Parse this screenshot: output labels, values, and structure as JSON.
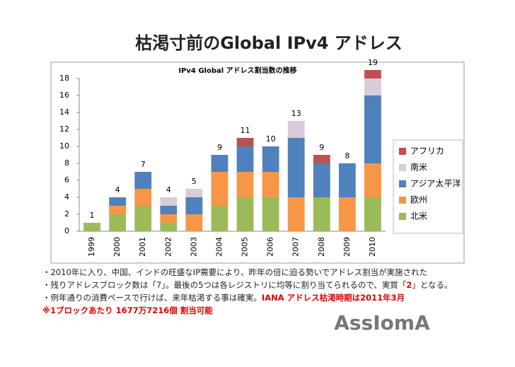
{
  "header": {
    "title": "枯渇寸前のGlobal IPv4 アドレス"
  },
  "chart_data": {
    "type": "stacked_bar",
    "title": "IPv4 Global アドレス割当数の推移",
    "categories": [
      "1999",
      "2000",
      "2001",
      "2002",
      "2003",
      "2004",
      "2005",
      "2006",
      "2007",
      "2008",
      "2009",
      "2010"
    ],
    "series": [
      {
        "name": "北米",
        "color": "#9bbb59",
        "values": [
          1,
          2,
          3,
          1,
          0,
          3,
          4,
          4,
          0,
          4,
          0,
          4
        ]
      },
      {
        "name": "欧州",
        "color": "#f79646",
        "values": [
          0,
          1,
          2,
          1,
          2,
          4,
          3,
          3,
          4,
          0,
          4,
          4
        ]
      },
      {
        "name": "アジア太平洋",
        "color": "#4f81bd",
        "values": [
          0,
          1,
          2,
          1,
          2,
          2,
          3,
          3,
          7,
          4,
          4,
          8
        ]
      },
      {
        "name": "南米",
        "color": "#d9ccd9",
        "values": [
          0,
          0,
          0,
          1,
          1,
          0,
          0,
          0,
          2,
          0,
          0,
          2
        ]
      },
      {
        "name": "アフリカ",
        "color": "#c0504d",
        "values": [
          0,
          0,
          0,
          0,
          0,
          0,
          1,
          0,
          0,
          1,
          0,
          1
        ]
      }
    ],
    "totals": [
      1,
      4,
      7,
      4,
      5,
      9,
      11,
      10,
      13,
      9,
      8,
      19
    ],
    "ylim": [
      0,
      18
    ],
    "yticks": [
      0,
      2,
      4,
      6,
      8,
      10,
      12,
      14,
      16,
      18
    ],
    "grid": false
  },
  "bullets": [
    [
      {
        "text": "・2010年に入り、中国、インドの旺盛なIP需要により、昨年の倍に迫る勢いでアドレス割当が実施された"
      }
    ],
    [
      {
        "text": "・残りアドレスブロック数は「7」。最後の5つは各レジストリに均等に割り当てられるので、実質「"
      },
      {
        "text": "2",
        "red": true
      },
      {
        "text": "」となる。"
      }
    ],
    [
      {
        "text": "・例年通りの消費ペースで行けば、来年枯渇する事は確実。"
      },
      {
        "text": "IANA アドレス枯渇時期は2011年3月",
        "red": true
      }
    ],
    [
      {
        "text": " ※1ブロックあたり  1677万7216個  割当可能",
        "red": true
      }
    ]
  ],
  "logo": "AssIomA"
}
